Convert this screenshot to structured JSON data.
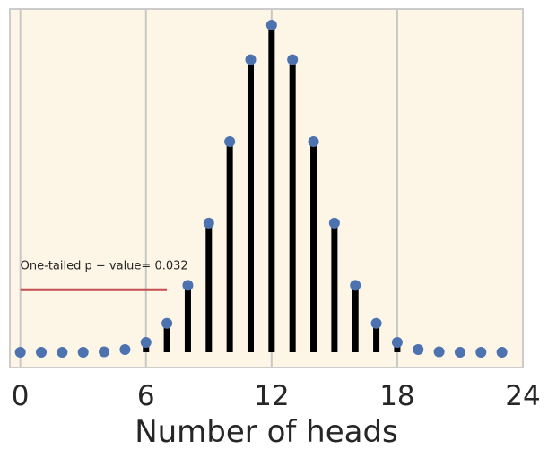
{
  "chart_data": {
    "type": "stem",
    "title": "",
    "xlabel": "Number of heads",
    "ylabel": "",
    "xlim": [
      -0.5,
      24
    ],
    "ylim": [
      0,
      0.171
    ],
    "xticks": [
      0,
      6,
      12,
      18,
      24
    ],
    "grid": "vertical",
    "x": [
      0,
      1,
      2,
      3,
      4,
      5,
      6,
      7,
      8,
      9,
      10,
      11,
      12,
      13,
      14,
      15,
      16,
      17,
      18,
      19,
      20,
      21,
      22,
      23
    ],
    "values": [
      0.0,
      0.0,
      0.0,
      0.0,
      0.0002,
      0.0011,
      0.004,
      0.0117,
      0.0271,
      0.0523,
      0.0853,
      0.1185,
      0.1325,
      0.1185,
      0.0853,
      0.0523,
      0.0271,
      0.0117,
      0.004,
      0.0011,
      0.0002,
      0.0,
      0.0,
      0.0
    ],
    "annotation": {
      "text": "One-tailed p − value= 0.032",
      "line_x": [
        0,
        7
      ],
      "line_y": 0.0253
    },
    "colors": {
      "background": "#fdf5e6",
      "stem": "#000000",
      "marker": "#4c72b0",
      "annotation_line": "#c44e52",
      "grid": "#c8c8c8",
      "spine": "#cccccc"
    }
  }
}
